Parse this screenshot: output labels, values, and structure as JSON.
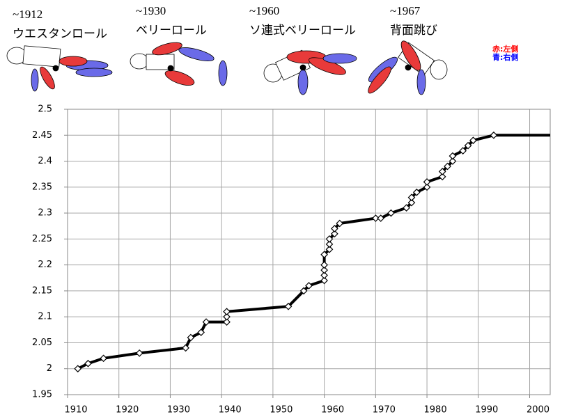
{
  "chart_data": {
    "type": "line",
    "x": [
      1912,
      1914,
      1917,
      1924,
      1933,
      1934,
      1936,
      1937,
      1941,
      1941,
      1941,
      1953,
      1956,
      1957,
      1960,
      1960,
      1960,
      1960,
      1960,
      1961,
      1961,
      1961,
      1962,
      1962,
      1963,
      1970,
      1971,
      1973,
      1976,
      1977,
      1977,
      1978,
      1980,
      1980,
      1983,
      1983,
      1984,
      1985,
      1985,
      1987,
      1988,
      1989,
      1993
    ],
    "series": [
      {
        "color": "#000000",
        "values": [
          2.0,
          2.01,
          2.02,
          2.03,
          2.04,
          2.06,
          2.07,
          2.09,
          2.09,
          2.1,
          2.11,
          2.12,
          2.15,
          2.16,
          2.17,
          2.18,
          2.19,
          2.2,
          2.22,
          2.23,
          2.24,
          2.25,
          2.26,
          2.27,
          2.28,
          2.29,
          2.29,
          2.3,
          2.31,
          2.32,
          2.33,
          2.34,
          2.35,
          2.36,
          2.37,
          2.38,
          2.39,
          2.4,
          2.41,
          2.42,
          2.43,
          2.44,
          2.45
        ]
      }
    ],
    "xlim": [
      1910,
      2004
    ],
    "xticks": [
      1910,
      1920,
      1930,
      1940,
      1950,
      1960,
      1970,
      1980,
      1990,
      2000
    ],
    "ylim": [
      1.95,
      2.5
    ],
    "yticks": [
      1.95,
      2,
      2.05,
      2.1,
      2.15,
      2.2,
      2.25,
      2.3,
      2.35,
      2.4,
      2.45,
      2.5
    ],
    "grid": true
  },
  "annotations": [
    {
      "period": "~1912",
      "style": "ウエスタンロール"
    },
    {
      "period": "~1930",
      "style": "ベリーロール"
    },
    {
      "period": "~1960",
      "style": "ソ連式ベリーロール"
    },
    {
      "period": "~1967",
      "style": "背面跳び"
    }
  ],
  "side_notes": [
    "赤:左側",
    "青:右側"
  ]
}
